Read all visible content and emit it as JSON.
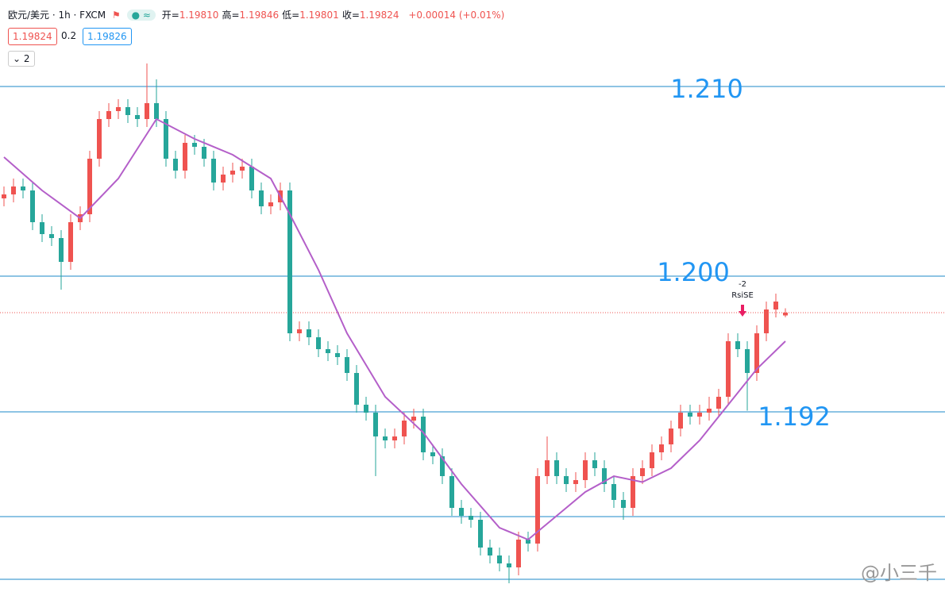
{
  "header": {
    "symbol": "欧元/美元 · 1h · FXCM",
    "ohlc": [
      {
        "label": "开=",
        "value": "1.19810"
      },
      {
        "label": "高=",
        "value": "1.19846"
      },
      {
        "label": "低=",
        "value": "1.19801"
      },
      {
        "label": "收=",
        "value": "1.19824"
      }
    ],
    "change": "+0.00014 (+0.01%)",
    "sell": "1.19824",
    "spread": "0.2",
    "buy": "1.19826",
    "indicator_count": "2"
  },
  "chart_data": {
    "type": "candlestick",
    "ylim": [
      1.183,
      1.214
    ],
    "up_color": "#ef5350",
    "down_color": "#26a69a",
    "open": [
      1.204,
      1.2042,
      1.2046,
      1.2044,
      1.2028,
      1.2022,
      1.202,
      1.2008,
      1.2028,
      1.2032,
      1.206,
      1.208,
      1.2084,
      1.2086,
      1.2082,
      1.208,
      1.2088,
      1.208,
      1.206,
      1.2054,
      1.2068,
      1.2066,
      1.206,
      1.2048,
      1.2052,
      1.2054,
      1.2056,
      1.2044,
      1.2036,
      1.2038,
      1.2044,
      1.1972,
      1.1974,
      1.197,
      1.1964,
      1.1962,
      1.196,
      1.1952,
      1.1936,
      1.1932,
      1.192,
      1.1918,
      1.192,
      1.1928,
      1.193,
      1.1912,
      1.191,
      1.19,
      1.1884,
      1.188,
      1.1878,
      1.1864,
      1.186,
      1.1856,
      1.1854,
      1.1868,
      1.1866,
      1.19,
      1.1908,
      1.19,
      1.1896,
      1.1898,
      1.1908,
      1.1904,
      1.1896,
      1.1888,
      1.1884,
      1.19,
      1.1904,
      1.1912,
      1.1916,
      1.1924,
      1.1932,
      1.193,
      1.1932,
      1.1934,
      1.194,
      1.1968,
      1.1964,
      1.1952,
      1.1972,
      1.1984,
      1.1981
    ],
    "high": [
      1.2046,
      1.205,
      1.205,
      1.2048,
      1.2032,
      1.2026,
      1.2024,
      1.2032,
      1.2036,
      1.2064,
      1.2084,
      1.2088,
      1.209,
      1.209,
      1.2086,
      1.2108,
      1.21,
      1.2084,
      1.2064,
      1.2072,
      1.2072,
      1.207,
      1.2064,
      1.2056,
      1.2058,
      1.206,
      1.206,
      1.2048,
      1.2042,
      1.2048,
      1.2048,
      1.1978,
      1.1978,
      1.1974,
      1.1968,
      1.1966,
      1.1964,
      1.1956,
      1.194,
      1.1936,
      1.1924,
      1.1924,
      1.1932,
      1.1934,
      1.1934,
      1.1916,
      1.1914,
      1.1904,
      1.1888,
      1.1884,
      1.1882,
      1.1868,
      1.1864,
      1.186,
      1.1872,
      1.1872,
      1.1904,
      1.192,
      1.1912,
      1.1904,
      1.1902,
      1.1912,
      1.1912,
      1.1908,
      1.19,
      1.1892,
      1.1904,
      1.1908,
      1.1916,
      1.192,
      1.1928,
      1.1936,
      1.1936,
      1.1936,
      1.194,
      1.1944,
      1.1972,
      1.1972,
      1.1968,
      1.1976,
      1.1988,
      1.1992,
      1.19846
    ],
    "low": [
      1.2036,
      1.2038,
      1.204,
      1.2024,
      1.2018,
      1.2016,
      1.1994,
      1.2004,
      1.2024,
      1.2028,
      1.2056,
      1.2076,
      1.208,
      1.2078,
      1.2076,
      1.2076,
      1.2076,
      1.2056,
      1.205,
      1.205,
      1.2062,
      1.2056,
      1.2044,
      1.2044,
      1.2048,
      1.205,
      1.204,
      1.2032,
      1.2032,
      1.2034,
      1.1968,
      1.1968,
      1.1966,
      1.196,
      1.1958,
      1.1956,
      1.1948,
      1.1932,
      1.1928,
      1.19,
      1.1914,
      1.1914,
      1.1916,
      1.1924,
      1.1908,
      1.1906,
      1.1896,
      1.188,
      1.1876,
      1.1874,
      1.186,
      1.1856,
      1.1852,
      1.1846,
      1.185,
      1.1862,
      1.1862,
      1.1896,
      1.1896,
      1.1892,
      1.1892,
      1.1894,
      1.19,
      1.1892,
      1.1884,
      1.1878,
      1.188,
      1.1896,
      1.19,
      1.1908,
      1.1912,
      1.192,
      1.1926,
      1.1926,
      1.1928,
      1.193,
      1.1936,
      1.196,
      1.1933,
      1.1948,
      1.1968,
      1.198,
      1.19801
    ],
    "close": [
      1.2042,
      1.2046,
      1.2044,
      1.2028,
      1.2022,
      1.202,
      1.2008,
      1.2028,
      1.2032,
      1.206,
      1.208,
      1.2084,
      1.2086,
      1.2082,
      1.208,
      1.2088,
      1.208,
      1.206,
      1.2054,
      1.2068,
      1.2066,
      1.206,
      1.2048,
      1.2052,
      1.2054,
      1.2056,
      1.2044,
      1.2036,
      1.2038,
      1.2044,
      1.1972,
      1.1974,
      1.197,
      1.1964,
      1.1962,
      1.196,
      1.1952,
      1.1936,
      1.1932,
      1.192,
      1.1918,
      1.192,
      1.1928,
      1.193,
      1.1912,
      1.191,
      1.19,
      1.1884,
      1.188,
      1.1878,
      1.1864,
      1.186,
      1.1856,
      1.1854,
      1.1868,
      1.1866,
      1.19,
      1.1908,
      1.19,
      1.1896,
      1.1898,
      1.1908,
      1.1904,
      1.1896,
      1.1888,
      1.1884,
      1.19,
      1.1904,
      1.1912,
      1.1916,
      1.1924,
      1.1932,
      1.193,
      1.1932,
      1.1934,
      1.194,
      1.1968,
      1.1964,
      1.1952,
      1.1972,
      1.1984,
      1.1988,
      1.19824
    ],
    "ma": {
      "color": "#b45fc9",
      "x": [
        0,
        4,
        8,
        12,
        16,
        20,
        24,
        28,
        30,
        33,
        36,
        40,
        44,
        48,
        52,
        55,
        58,
        61,
        64,
        67,
        70,
        73,
        76,
        79,
        82
      ],
      "values": [
        1.20608,
        1.2044,
        1.203,
        1.205,
        1.208,
        1.207,
        1.2062,
        1.205,
        1.2032,
        1.2004,
        1.1972,
        1.194,
        1.1922,
        1.1896,
        1.1874,
        1.1868,
        1.188,
        1.1892,
        1.19,
        1.1897,
        1.1904,
        1.1918,
        1.1936,
        1.1954,
        1.1968
      ]
    },
    "levels": [
      1.20964,
      1.20008,
      1.19324,
      1.18796,
      1.1848
    ],
    "level_color": "#1e88c8",
    "last_price": 1.19824,
    "annotations": [
      "1.210",
      "1.200",
      "1.192"
    ],
    "signal": {
      "value": "-2",
      "name": "RsiSE"
    },
    "watermark": "@小三千"
  }
}
